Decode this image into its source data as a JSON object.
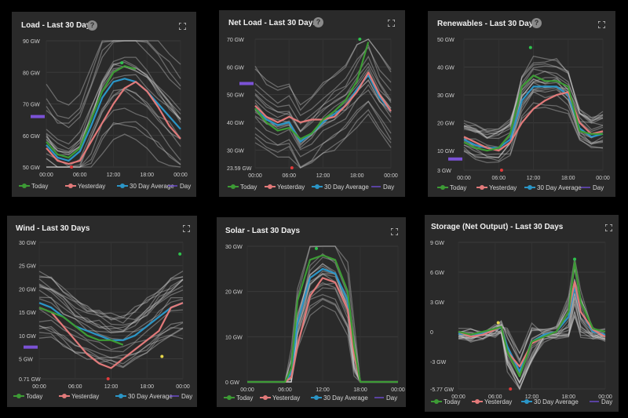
{
  "panels": [
    {
      "title": "Load - Last 30 Days",
      "help": "?",
      "chart_data": {
        "type": "line",
        "x_ticks": [
          "00:00",
          "06:00",
          "12:00",
          "18:00",
          "00:00"
        ],
        "y_ticks": [
          "90 GW",
          "80 GW",
          "70 GW",
          "60 GW",
          "50 GW"
        ],
        "ylim": [
          50,
          90
        ],
        "x_hours": [
          0,
          2,
          4,
          6,
          8,
          10,
          12,
          14,
          16,
          18,
          20,
          22,
          24
        ],
        "series": [
          {
            "name": "Today",
            "color": "#3d9b35",
            "values": [
              58,
              54,
              53,
              56,
              65,
              74,
              80,
              82,
              81,
              null,
              null,
              null,
              null
            ]
          },
          {
            "name": "Yesterday",
            "color": "#e27a7a",
            "values": [
              56,
              52,
              51,
              52,
              58,
              64,
              70,
              75,
              77,
              74,
              69,
              63,
              59
            ]
          },
          {
            "name": "30 Day Average",
            "color": "#2b95c6",
            "values": [
              57,
              53,
              52,
              55,
              63,
              72,
              77,
              78,
              77,
              74,
              70,
              66,
              62
            ]
          },
          {
            "name": "Day",
            "color": "#6a4bc9",
            "values": []
          }
        ],
        "annotations": {
          "day_marker": {
            "y": 66
          },
          "max_point": {
            "x": 13.5,
            "y": 83
          },
          "min_point": {
            "x": 4.5,
            "y": 50
          }
        },
        "legend": "bottom"
      }
    },
    {
      "title": "Net Load - Last 30 Days",
      "help": "?",
      "chart_data": {
        "type": "line",
        "x_ticks": [
          "00:00",
          "06:00",
          "12:00",
          "18:00",
          "00:00"
        ],
        "y_ticks": [
          "70 GW",
          "60 GW",
          "50 GW",
          "40 GW",
          "30 GW",
          "23.59 GW"
        ],
        "ylim": [
          23.59,
          70
        ],
        "x_hours": [
          0,
          2,
          4,
          6,
          8,
          10,
          12,
          14,
          16,
          18,
          20,
          22,
          24
        ],
        "series": [
          {
            "name": "Today",
            "color": "#3d9b35",
            "values": [
              45,
              40,
              37,
              38,
              34,
              36,
              41,
              44,
              48,
              55,
              69,
              null,
              null
            ]
          },
          {
            "name": "Yesterday",
            "color": "#e27a7a",
            "values": [
              46,
              42,
              40,
              42,
              40,
              41,
              41,
              42,
              46,
              51,
              58,
              50,
              44
            ]
          },
          {
            "name": "30 Day Average",
            "color": "#2b95c6",
            "values": [
              45,
              41,
              39,
              40,
              33,
              36,
              40,
              43,
              46,
              52,
              57,
              49,
              44
            ]
          },
          {
            "name": "Day",
            "color": "#6a4bc9",
            "values": []
          }
        ],
        "annotations": {
          "day_marker": {
            "y": 54
          },
          "max_point": {
            "x": 18.5,
            "y": 70
          },
          "min_point": {
            "x": 6.5,
            "y": 23.59
          }
        },
        "legend": "bottom"
      }
    },
    {
      "title": "Renewables - Last 30 Days",
      "help": "?",
      "chart_data": {
        "type": "line",
        "x_ticks": [
          "00:00",
          "06:00",
          "12:00",
          "18:00",
          "00:00"
        ],
        "y_ticks": [
          "50 GW",
          "40 GW",
          "30 GW",
          "20 GW",
          "10 GW",
          "3 GW"
        ],
        "ylim": [
          3,
          50
        ],
        "x_hours": [
          0,
          2,
          4,
          6,
          8,
          10,
          12,
          14,
          16,
          18,
          20,
          22,
          24
        ],
        "series": [
          {
            "name": "Today",
            "color": "#3d9b35",
            "values": [
              13,
              11,
              10,
              11,
              16,
              33,
              37,
              35,
              35,
              33,
              17,
              16,
              16
            ]
          },
          {
            "name": "Yesterday",
            "color": "#e27a7a",
            "values": [
              15,
              13,
              11,
              10,
              13,
              20,
              25,
              28,
              30,
              31,
              20,
              16,
              17
            ]
          },
          {
            "name": "30 Day Average",
            "color": "#2b95c6",
            "values": [
              14,
              12,
              11,
              11,
              14,
              28,
              33,
              33,
              33,
              30,
              18,
              15,
              16
            ]
          },
          {
            "name": "Day",
            "color": "#6a4bc9",
            "values": []
          }
        ],
        "annotations": {
          "day_marker": {
            "y": 7
          },
          "max_point": {
            "x": 11.5,
            "y": 47
          },
          "min_point": {
            "x": 6.5,
            "y": 3
          }
        },
        "legend": "bottom"
      }
    },
    {
      "title": "Wind - Last 30 Days",
      "help": "",
      "chart_data": {
        "type": "line",
        "x_ticks": [
          "00:00",
          "06:00",
          "12:00",
          "18:00",
          "00:00"
        ],
        "y_ticks": [
          "30 GW",
          "25 GW",
          "20 GW",
          "15 GW",
          "10 GW",
          "5 GW",
          "0.71 GW"
        ],
        "ylim": [
          0.71,
          30
        ],
        "x_hours": [
          0,
          2,
          4,
          6,
          8,
          10,
          12,
          14,
          16,
          18,
          20,
          22,
          24
        ],
        "series": [
          {
            "name": "Today",
            "color": "#3d9b35",
            "values": [
              16,
              15,
              14,
              12,
              10,
              9,
              9,
              8,
              null,
              null,
              null,
              null,
              null
            ]
          },
          {
            "name": "Yesterday",
            "color": "#e27a7a",
            "values": [
              16,
              15,
              12,
              9,
              6,
              4,
              3,
              5,
              7,
              9,
              11,
              16,
              17
            ]
          },
          {
            "name": "30 Day Average",
            "color": "#2b95c6",
            "values": [
              17,
              16,
              14,
              12,
              11,
              10,
              9,
              9,
              10,
              12,
              14,
              16,
              17
            ]
          },
          {
            "name": "Day",
            "color": "#6a4bc9",
            "values": []
          }
        ],
        "annotations": {
          "day_marker": {
            "y": 7.5
          },
          "max_point": {
            "x": 23.5,
            "y": 27.5
          },
          "min_point": {
            "x": 11.5,
            "y": 0.71
          }
        },
        "legend": "bottom"
      }
    },
    {
      "title": "Solar - Last 30 Days",
      "help": "",
      "chart_data": {
        "type": "line",
        "x_ticks": [
          "00:00",
          "06:00",
          "12:00",
          "18:00",
          "00:00"
        ],
        "y_ticks": [
          "30 GW",
          "20 GW",
          "10 GW",
          "0 GW"
        ],
        "ylim": [
          0,
          30
        ],
        "x_hours": [
          0,
          2,
          4,
          6,
          7,
          8,
          10,
          12,
          14,
          16,
          17,
          18,
          20,
          22,
          24
        ],
        "series": [
          {
            "name": "Today",
            "color": "#3d9b35",
            "values": [
              0,
              0,
              0,
              0,
              3,
              18,
              27,
              28,
              27,
              20,
              8,
              0,
              0,
              0,
              0
            ]
          },
          {
            "name": "Yesterday",
            "color": "#e27a7a",
            "values": [
              0,
              0,
              0,
              0,
              1,
              8,
              19,
              23,
              22,
              16,
              6,
              0,
              0,
              0,
              0
            ]
          },
          {
            "name": "30 Day Average",
            "color": "#2b95c6",
            "values": [
              0,
              0,
              0,
              0,
              2,
              13,
              23,
              25,
              24,
              18,
              7,
              0,
              0,
              0,
              0
            ]
          },
          {
            "name": "Day",
            "color": "#6a4bc9",
            "values": []
          }
        ],
        "annotations": {
          "max_point": {
            "x": 11,
            "y": 29.5
          }
        },
        "legend": "bottom"
      }
    },
    {
      "title": "Storage (Net Output) - Last 30 Days",
      "help": "",
      "chart_data": {
        "type": "line",
        "x_ticks": [
          "00:00",
          "06:00",
          "12:00",
          "18:00",
          "00:00"
        ],
        "y_ticks": [
          "9 GW",
          "6 GW",
          "3 GW",
          "0",
          "-3 GW",
          "-5.77 GW"
        ],
        "ylim": [
          -5.77,
          9
        ],
        "x_hours": [
          0,
          2,
          4,
          6,
          7,
          8,
          10,
          12,
          14,
          16,
          18,
          19,
          20,
          22,
          24
        ],
        "series": [
          {
            "name": "Today",
            "color": "#3d9b35",
            "values": [
              0,
              -0.3,
              0,
              0.3,
              0.5,
              -2,
              -4.5,
              -1,
              -0.5,
              0,
              2,
              7,
              3,
              0.3,
              0
            ]
          },
          {
            "name": "Yesterday",
            "color": "#e27a7a",
            "values": [
              0,
              -0.5,
              -0.3,
              0.2,
              0.5,
              -2,
              -3.5,
              -1.2,
              -0.5,
              0,
              2,
              5,
              2,
              0.2,
              -0.5
            ]
          },
          {
            "name": "30 Day Average",
            "color": "#2b95c6",
            "values": [
              -0.2,
              -0.3,
              -0.2,
              0.2,
              0.4,
              -1.5,
              -4,
              -1,
              -0.3,
              0,
              1.5,
              4.5,
              2,
              0,
              -0.3
            ]
          },
          {
            "name": "Day",
            "color": "#6a4bc9",
            "values": []
          }
        ],
        "annotations": {
          "max_point": {
            "x": 19,
            "y": 7.3
          },
          "min_point": {
            "x": 8.5,
            "y": -5.77
          },
          "highlight_point": {
            "x": 6.5,
            "y": 0.9
          }
        },
        "legend": "bottom"
      }
    }
  ]
}
